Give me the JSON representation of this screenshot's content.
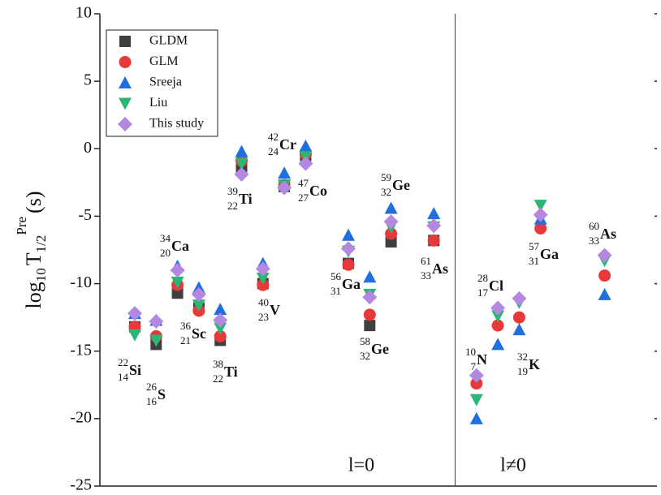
{
  "chart_data": {
    "type": "scatter",
    "ylabel": {
      "log": "log",
      "base": "10",
      "T": "T",
      "sub": "1/2",
      "sup": "Pre",
      "unit": "(s)"
    },
    "categories": [
      {
        "mass": "22",
        "z": "14",
        "symbol": "Si"
      },
      {
        "mass": "26",
        "z": "16",
        "symbol": "S"
      },
      {
        "mass": "34",
        "z": "20",
        "symbol": "Ca"
      },
      {
        "mass": "36",
        "z": "21",
        "symbol": "Sc"
      },
      {
        "mass": "38",
        "z": "22",
        "symbol": "Ti"
      },
      {
        "mass": "39",
        "z": "22",
        "symbol": "Ti"
      },
      {
        "mass": "40",
        "z": "23",
        "symbol": "V"
      },
      {
        "mass": "47",
        "z": "27",
        "symbol": "Co"
      },
      {
        "mass": "42",
        "z": "24",
        "symbol": "Cr"
      },
      {
        "mass": "56",
        "z": "31",
        "symbol": "Ga"
      },
      {
        "mass": "58",
        "z": "32",
        "symbol": "Ge"
      },
      {
        "mass": "59",
        "z": "32",
        "symbol": "Ge"
      },
      {
        "mass": "61",
        "z": "33",
        "symbol": "As"
      },
      {
        "mass": "10",
        "z": "7",
        "symbol": "N"
      },
      {
        "mass": "28",
        "z": "17",
        "symbol": "Cl"
      },
      {
        "mass": "32",
        "z": "19",
        "symbol": "K"
      },
      {
        "mass": "57",
        "z": "31",
        "symbol": "Ga"
      },
      {
        "mass": "60",
        "z": "33",
        "symbol": "As"
      }
    ],
    "series": [
      {
        "name": "GLDM",
        "color": "#3f3f3f",
        "marker": "square",
        "values": [
          -13.2,
          -14.5,
          -10.7,
          -11.8,
          -14.2,
          -1.5,
          -10.0,
          -2.8,
          -0.5,
          -8.5,
          -13.1,
          -6.9,
          -6.8,
          null,
          null,
          null,
          null,
          null
        ]
      },
      {
        "name": "GLM",
        "color": "#e8393a",
        "marker": "circle",
        "values": [
          -13.2,
          -13.9,
          -10.1,
          -12.0,
          -13.9,
          -0.9,
          -10.1,
          -2.7,
          -0.4,
          -8.6,
          -12.3,
          -6.3,
          -6.8,
          -17.4,
          -13.1,
          -12.5,
          -5.9,
          -9.4
        ]
      },
      {
        "name": "Sreeja",
        "color": "#1f6fe0",
        "marker": "triangle-up",
        "values": [
          -12.2,
          -12.7,
          -8.7,
          -10.3,
          -11.9,
          -0.2,
          -8.5,
          -1.8,
          0.2,
          -6.4,
          -9.5,
          -4.4,
          -4.8,
          -20.0,
          -14.5,
          -13.4,
          -5.2,
          -10.8
        ]
      },
      {
        "name": "Liu",
        "color": "#2bb673",
        "marker": "triangle-down",
        "values": [
          -13.8,
          -14.2,
          -9.9,
          -11.6,
          -13.3,
          -1.1,
          -9.6,
          -2.7,
          -0.6,
          -7.6,
          -10.8,
          -5.8,
          -5.8,
          -18.6,
          -12.4,
          -11.4,
          -4.2,
          -8.3
        ]
      },
      {
        "name": "This study",
        "color": "#b487e0",
        "marker": "diamond",
        "values": [
          -12.2,
          -12.8,
          -9.0,
          -10.8,
          -12.7,
          -1.9,
          -8.9,
          -2.9,
          -1.1,
          -7.4,
          -11.0,
          -5.4,
          -5.7,
          -16.8,
          -11.8,
          -11.1,
          -4.9,
          -7.9
        ]
      }
    ],
    "annotations": [
      "l=0",
      "l≠0"
    ],
    "ylim": [
      -25,
      10
    ],
    "yticks": [
      -25,
      -20,
      -15,
      -10,
      -5,
      0,
      5,
      10
    ]
  }
}
